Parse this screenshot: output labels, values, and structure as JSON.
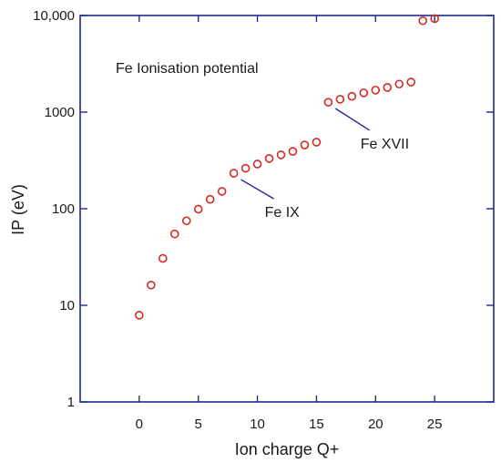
{
  "chart_data": {
    "type": "scatter",
    "title": "Fe Ionisation potential",
    "xlabel": "Ion charge Q+",
    "ylabel": "IP (eV)",
    "xlim": [
      -5,
      30
    ],
    "ylim": [
      1,
      10000
    ],
    "y_scale": "log",
    "grid": false,
    "x_ticks": [
      0,
      5,
      10,
      15,
      20,
      25
    ],
    "x_tick_labels": [
      "0",
      "5",
      "10",
      "15",
      "20",
      "25"
    ],
    "y_ticks": [
      1,
      10,
      100,
      1000,
      10000
    ],
    "y_tick_labels": [
      "1",
      "10",
      "100",
      "1000",
      "10,000"
    ],
    "series": [
      {
        "x": [
          0,
          1,
          2,
          3,
          4,
          5,
          6,
          7,
          8,
          9,
          10,
          11,
          12,
          13,
          14,
          15,
          16,
          17,
          18,
          19,
          20,
          21,
          22,
          23,
          24,
          25
        ],
        "y": [
          7.9,
          16.2,
          30.6,
          54.8,
          75,
          99,
          125,
          151,
          233,
          262,
          290,
          331,
          361,
          392,
          457,
          489,
          1266,
          1358,
          1456,
          1582,
          1689,
          1799,
          1950,
          2045,
          8828,
          9278
        ],
        "marker": "hollow-circle",
        "color": "#d42a20"
      }
    ],
    "annotations": [
      {
        "text": "Fe IX",
        "x": 8,
        "y": 233,
        "label_x": 11.7,
        "label_y": 82
      },
      {
        "text": "Fe XVII",
        "x": 16,
        "y": 1266,
        "label_x": 19.8,
        "label_y": 420
      }
    ],
    "axis_color": "#1f2a8f",
    "annotation_line_color": "#1f2a8f"
  }
}
